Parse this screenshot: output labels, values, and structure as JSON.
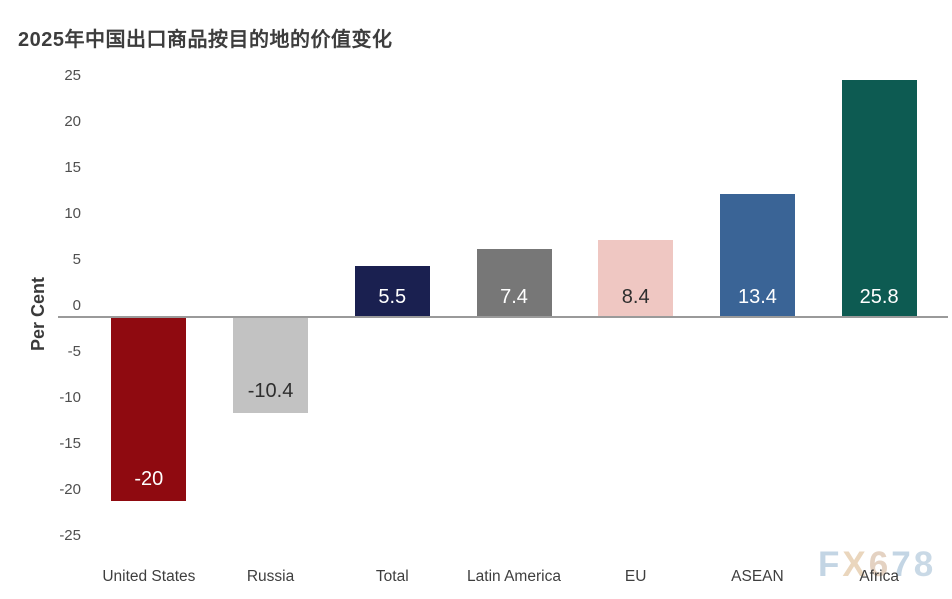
{
  "title": "2025年中国出口商品按目的地的价值变化",
  "watermark": {
    "text": "FX678",
    "letters": [
      "F",
      "X",
      "6",
      "7",
      "8"
    ],
    "colors": [
      "#c3d5e4",
      "#ead6bd",
      "#e4d2c2",
      "#c3d5e4",
      "#c9d9e6"
    ]
  },
  "chart_data": {
    "type": "bar",
    "title": "2025年中国出口商品按目的地的价值变化",
    "ylabel": "Per Cent",
    "xlabel": "",
    "ylim": [
      -25,
      25
    ],
    "yticks": [
      "25",
      "20",
      "15",
      "10",
      "5",
      "0",
      "-5",
      "-10",
      "-15",
      "-20",
      "-25"
    ],
    "ytick_values": [
      25,
      20,
      15,
      10,
      5,
      0,
      -5,
      -10,
      -15,
      -20,
      -25
    ],
    "grid": false,
    "legend": false,
    "categories": [
      "United States",
      "Russia",
      "Total",
      "Latin America",
      "EU",
      "ASEAN",
      "Africa"
    ],
    "values": [
      -20,
      -10.4,
      5.5,
      7.4,
      8.4,
      13.4,
      25.8
    ],
    "value_labels": [
      "-20",
      "-10.4",
      "5.5",
      "7.4",
      "8.4",
      "13.4",
      "25.8"
    ],
    "bar_colors": [
      "#8f0a10",
      "#c2c2c2",
      "#1a2050",
      "#777777",
      "#efc7c2",
      "#3a6496",
      "#0d5b52"
    ],
    "value_label_colors": [
      "#ffffff",
      "#2e2e2e",
      "#ffffff",
      "#ffffff",
      "#2e2e2e",
      "#ffffff",
      "#ffffff"
    ],
    "axis_line_color": "#9a9a9a",
    "tick_label_color": "#4f4f4f",
    "category_label_color": "#3e3e3e",
    "title_color": "#3d3d3d",
    "background_color": "#ffffff"
  }
}
